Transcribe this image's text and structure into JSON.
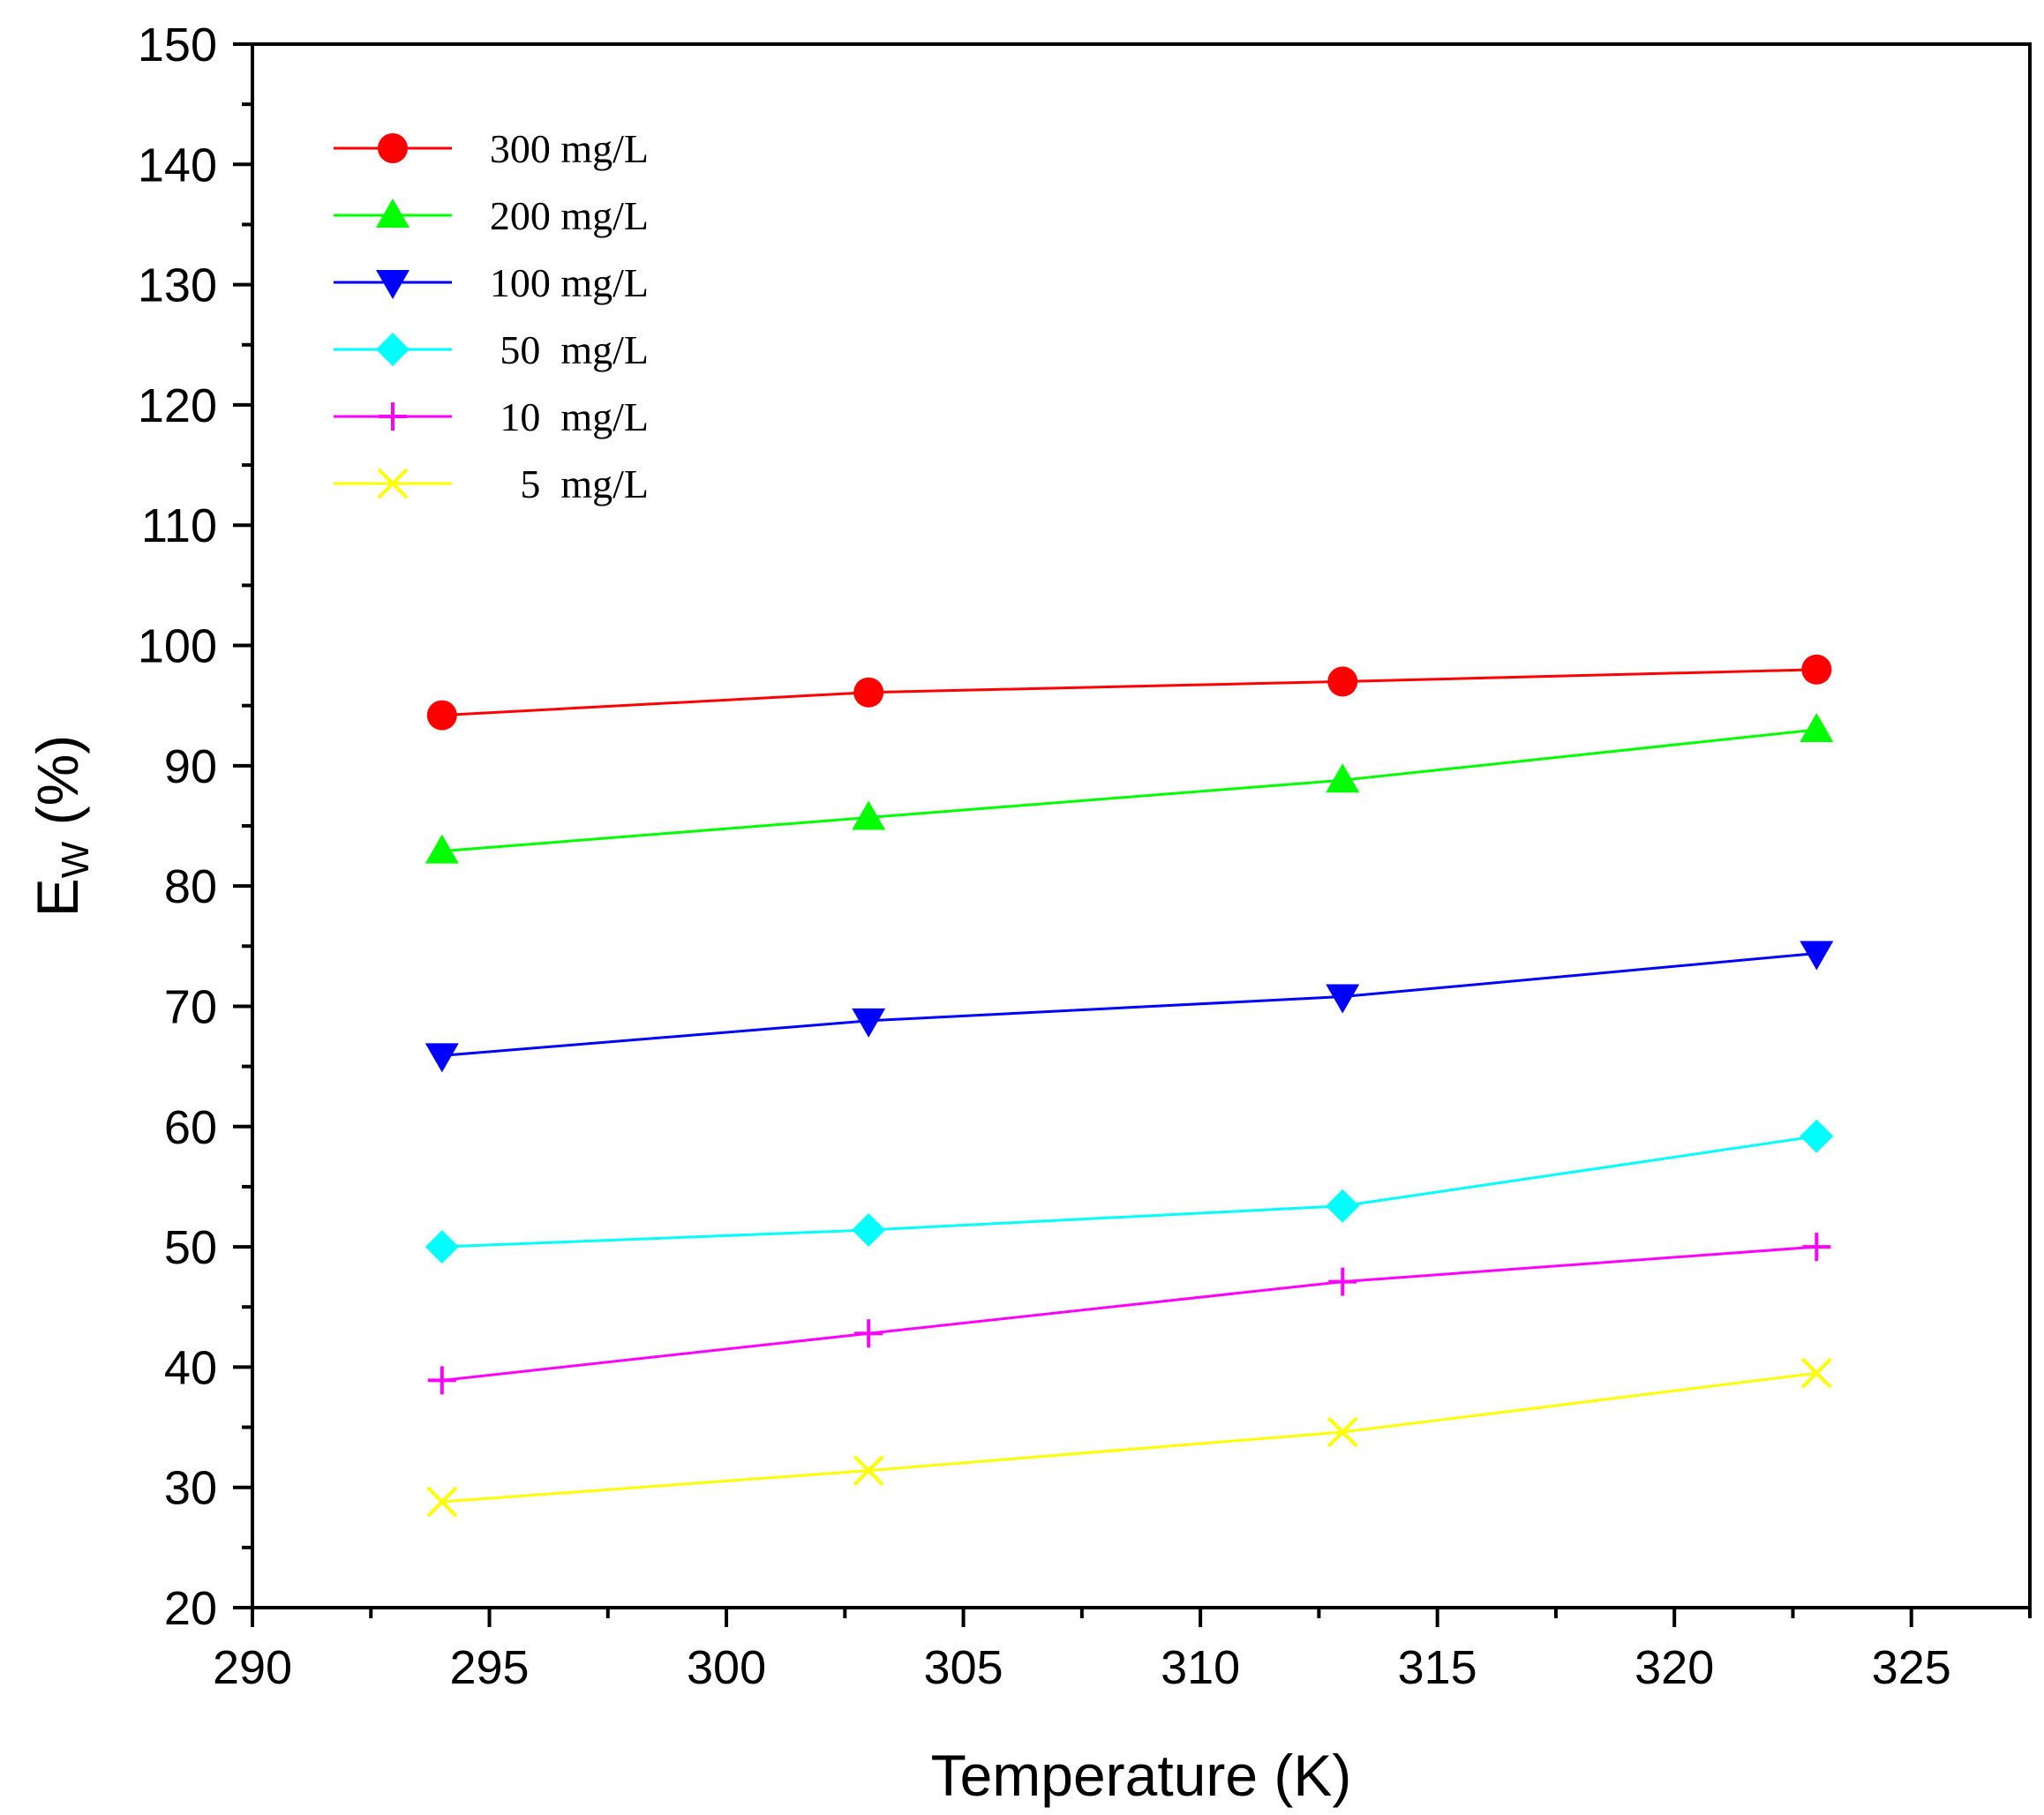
{
  "chart_data": {
    "type": "line",
    "title": "",
    "xlabel": "Temperature (K)",
    "ylabel_main": "E",
    "ylabel_sub": "W",
    "ylabel_unit": " (%)",
    "xlim": [
      290,
      327.5
    ],
    "ylim": [
      20,
      150
    ],
    "xticks": [
      290,
      295,
      300,
      305,
      310,
      315,
      320,
      325
    ],
    "yticks": [
      20,
      30,
      40,
      50,
      60,
      70,
      80,
      90,
      100,
      110,
      120,
      130,
      140,
      150
    ],
    "x": [
      294,
      303,
      313,
      323
    ],
    "legend_position": "top-left",
    "series": [
      {
        "name": "300 mg/L",
        "color": "#ff0000",
        "marker": "circle",
        "values": [
          94.2,
          96.1,
          97.0,
          98.0
        ]
      },
      {
        "name": "200 mg/L",
        "color": "#00ff00",
        "marker": "triangle-up",
        "values": [
          82.9,
          85.7,
          88.8,
          93.0
        ]
      },
      {
        "name": "100 mg/L",
        "color": "#0000ff",
        "marker": "triangle-down",
        "values": [
          65.9,
          68.8,
          70.8,
          74.4
        ]
      },
      {
        "name": "50  mg/L",
        "color": "#00ffff",
        "marker": "diamond",
        "values": [
          50.0,
          51.4,
          53.4,
          59.2
        ]
      },
      {
        "name": "10  mg/L",
        "color": "#ff00ff",
        "marker": "plus",
        "values": [
          38.9,
          42.8,
          47.1,
          50.0
        ]
      },
      {
        "name": "5  mg/L",
        "color": "#ffff00",
        "marker": "cross",
        "values": [
          28.8,
          31.4,
          34.6,
          39.5
        ]
      }
    ]
  }
}
